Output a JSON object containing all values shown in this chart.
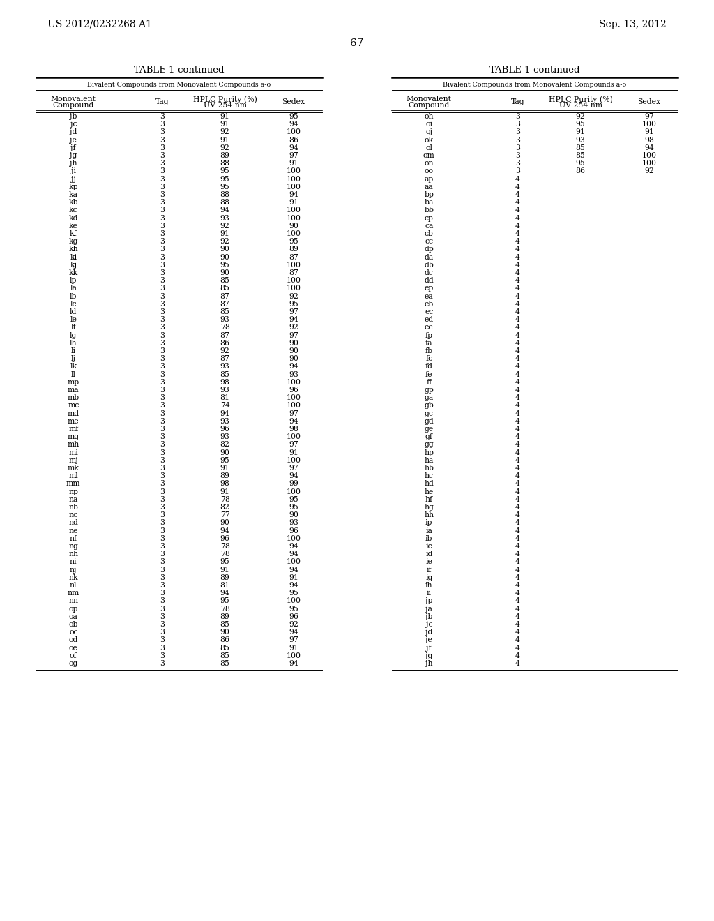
{
  "page_header_left": "US 2012/0232268 A1",
  "page_header_right": "Sep. 13, 2012",
  "page_number": "67",
  "table_title": "TABLE 1-continued",
  "table_subtitle": "Bivalent Compounds from Monovalent Compounds a-o",
  "left_data": [
    [
      "jb",
      "3",
      "91",
      "95"
    ],
    [
      "jc",
      "3",
      "91",
      "94"
    ],
    [
      "jd",
      "3",
      "92",
      "100"
    ],
    [
      "je",
      "3",
      "91",
      "86"
    ],
    [
      "jf",
      "3",
      "92",
      "94"
    ],
    [
      "jg",
      "3",
      "89",
      "97"
    ],
    [
      "jh",
      "3",
      "88",
      "91"
    ],
    [
      "ji",
      "3",
      "95",
      "100"
    ],
    [
      "jj",
      "3",
      "95",
      "100"
    ],
    [
      "kp",
      "3",
      "95",
      "100"
    ],
    [
      "ka",
      "3",
      "88",
      "94"
    ],
    [
      "kb",
      "3",
      "88",
      "91"
    ],
    [
      "kc",
      "3",
      "94",
      "100"
    ],
    [
      "kd",
      "3",
      "93",
      "100"
    ],
    [
      "ke",
      "3",
      "92",
      "90"
    ],
    [
      "kf",
      "3",
      "91",
      "100"
    ],
    [
      "kg",
      "3",
      "92",
      "95"
    ],
    [
      "kh",
      "3",
      "90",
      "89"
    ],
    [
      "ki",
      "3",
      "90",
      "87"
    ],
    [
      "kj",
      "3",
      "95",
      "100"
    ],
    [
      "kk",
      "3",
      "90",
      "87"
    ],
    [
      "lp",
      "3",
      "85",
      "100"
    ],
    [
      "la",
      "3",
      "85",
      "100"
    ],
    [
      "lb",
      "3",
      "87",
      "92"
    ],
    [
      "lc",
      "3",
      "87",
      "95"
    ],
    [
      "ld",
      "3",
      "85",
      "97"
    ],
    [
      "le",
      "3",
      "93",
      "94"
    ],
    [
      "lf",
      "3",
      "78",
      "92"
    ],
    [
      "lg",
      "3",
      "87",
      "97"
    ],
    [
      "lh",
      "3",
      "86",
      "90"
    ],
    [
      "li",
      "3",
      "92",
      "90"
    ],
    [
      "lj",
      "3",
      "87",
      "90"
    ],
    [
      "lk",
      "3",
      "93",
      "94"
    ],
    [
      "ll",
      "3",
      "85",
      "93"
    ],
    [
      "mp",
      "3",
      "98",
      "100"
    ],
    [
      "ma",
      "3",
      "93",
      "96"
    ],
    [
      "mb",
      "3",
      "81",
      "100"
    ],
    [
      "mc",
      "3",
      "74",
      "100"
    ],
    [
      "md",
      "3",
      "94",
      "97"
    ],
    [
      "me",
      "3",
      "93",
      "94"
    ],
    [
      "mf",
      "3",
      "96",
      "98"
    ],
    [
      "mg",
      "3",
      "93",
      "100"
    ],
    [
      "mh",
      "3",
      "82",
      "97"
    ],
    [
      "mi",
      "3",
      "90",
      "91"
    ],
    [
      "mj",
      "3",
      "95",
      "100"
    ],
    [
      "mk",
      "3",
      "91",
      "97"
    ],
    [
      "ml",
      "3",
      "89",
      "94"
    ],
    [
      "mm",
      "3",
      "98",
      "99"
    ],
    [
      "np",
      "3",
      "91",
      "100"
    ],
    [
      "na",
      "3",
      "78",
      "95"
    ],
    [
      "nb",
      "3",
      "82",
      "95"
    ],
    [
      "nc",
      "3",
      "77",
      "90"
    ],
    [
      "nd",
      "3",
      "90",
      "93"
    ],
    [
      "ne",
      "3",
      "94",
      "96"
    ],
    [
      "nf",
      "3",
      "96",
      "100"
    ],
    [
      "ng",
      "3",
      "78",
      "94"
    ],
    [
      "nh",
      "3",
      "78",
      "94"
    ],
    [
      "ni",
      "3",
      "95",
      "100"
    ],
    [
      "nj",
      "3",
      "91",
      "94"
    ],
    [
      "nk",
      "3",
      "89",
      "91"
    ],
    [
      "nl",
      "3",
      "81",
      "94"
    ],
    [
      "nm",
      "3",
      "94",
      "95"
    ],
    [
      "nn",
      "3",
      "95",
      "100"
    ],
    [
      "op",
      "3",
      "78",
      "95"
    ],
    [
      "oa",
      "3",
      "89",
      "96"
    ],
    [
      "ob",
      "3",
      "85",
      "92"
    ],
    [
      "oc",
      "3",
      "90",
      "94"
    ],
    [
      "od",
      "3",
      "86",
      "97"
    ],
    [
      "oe",
      "3",
      "85",
      "91"
    ],
    [
      "of",
      "3",
      "85",
      "100"
    ],
    [
      "og",
      "3",
      "85",
      "94"
    ]
  ],
  "right_data": [
    [
      "oh",
      "3",
      "92",
      "97"
    ],
    [
      "oi",
      "3",
      "95",
      "100"
    ],
    [
      "oj",
      "3",
      "91",
      "91"
    ],
    [
      "ok",
      "3",
      "93",
      "98"
    ],
    [
      "ol",
      "3",
      "85",
      "94"
    ],
    [
      "om",
      "3",
      "85",
      "100"
    ],
    [
      "on",
      "3",
      "95",
      "100"
    ],
    [
      "oo",
      "3",
      "86",
      "92"
    ],
    [
      "ap",
      "4",
      "",
      ""
    ],
    [
      "aa",
      "4",
      "",
      ""
    ],
    [
      "bp",
      "4",
      "",
      ""
    ],
    [
      "ba",
      "4",
      "",
      ""
    ],
    [
      "bb",
      "4",
      "",
      ""
    ],
    [
      "cp",
      "4",
      "",
      ""
    ],
    [
      "ca",
      "4",
      "",
      ""
    ],
    [
      "cb",
      "4",
      "",
      ""
    ],
    [
      "cc",
      "4",
      "",
      ""
    ],
    [
      "dp",
      "4",
      "",
      ""
    ],
    [
      "da",
      "4",
      "",
      ""
    ],
    [
      "db",
      "4",
      "",
      ""
    ],
    [
      "dc",
      "4",
      "",
      ""
    ],
    [
      "dd",
      "4",
      "",
      ""
    ],
    [
      "ep",
      "4",
      "",
      ""
    ],
    [
      "ea",
      "4",
      "",
      ""
    ],
    [
      "eb",
      "4",
      "",
      ""
    ],
    [
      "ec",
      "4",
      "",
      ""
    ],
    [
      "ed",
      "4",
      "",
      ""
    ],
    [
      "ee",
      "4",
      "",
      ""
    ],
    [
      "fp",
      "4",
      "",
      ""
    ],
    [
      "fa",
      "4",
      "",
      ""
    ],
    [
      "fb",
      "4",
      "",
      ""
    ],
    [
      "fc",
      "4",
      "",
      ""
    ],
    [
      "fd",
      "4",
      "",
      ""
    ],
    [
      "fe",
      "4",
      "",
      ""
    ],
    [
      "ff",
      "4",
      "",
      ""
    ],
    [
      "gp",
      "4",
      "",
      ""
    ],
    [
      "ga",
      "4",
      "",
      ""
    ],
    [
      "gb",
      "4",
      "",
      ""
    ],
    [
      "gc",
      "4",
      "",
      ""
    ],
    [
      "gd",
      "4",
      "",
      ""
    ],
    [
      "ge",
      "4",
      "",
      ""
    ],
    [
      "gf",
      "4",
      "",
      ""
    ],
    [
      "gg",
      "4",
      "",
      ""
    ],
    [
      "hp",
      "4",
      "",
      ""
    ],
    [
      "ha",
      "4",
      "",
      ""
    ],
    [
      "hb",
      "4",
      "",
      ""
    ],
    [
      "hc",
      "4",
      "",
      ""
    ],
    [
      "hd",
      "4",
      "",
      ""
    ],
    [
      "he",
      "4",
      "",
      ""
    ],
    [
      "hf",
      "4",
      "",
      ""
    ],
    [
      "hg",
      "4",
      "",
      ""
    ],
    [
      "hh",
      "4",
      "",
      ""
    ],
    [
      "ip",
      "4",
      "",
      ""
    ],
    [
      "ia",
      "4",
      "",
      ""
    ],
    [
      "ib",
      "4",
      "",
      ""
    ],
    [
      "ic",
      "4",
      "",
      ""
    ],
    [
      "id",
      "4",
      "",
      ""
    ],
    [
      "ie",
      "4",
      "",
      ""
    ],
    [
      "if",
      "4",
      "",
      ""
    ],
    [
      "ig",
      "4",
      "",
      ""
    ],
    [
      "ih",
      "4",
      "",
      ""
    ],
    [
      "ii",
      "4",
      "",
      ""
    ],
    [
      "jp",
      "4",
      "",
      ""
    ],
    [
      "ja",
      "4",
      "",
      ""
    ],
    [
      "jb",
      "4",
      "",
      ""
    ],
    [
      "jc",
      "4",
      "",
      ""
    ],
    [
      "jd",
      "4",
      "",
      ""
    ],
    [
      "je",
      "4",
      "",
      ""
    ],
    [
      "jf",
      "4",
      "",
      ""
    ],
    [
      "jg",
      "4",
      "",
      ""
    ],
    [
      "jh",
      "4",
      "",
      ""
    ]
  ],
  "background_color": "#ffffff",
  "text_color": "#000000"
}
